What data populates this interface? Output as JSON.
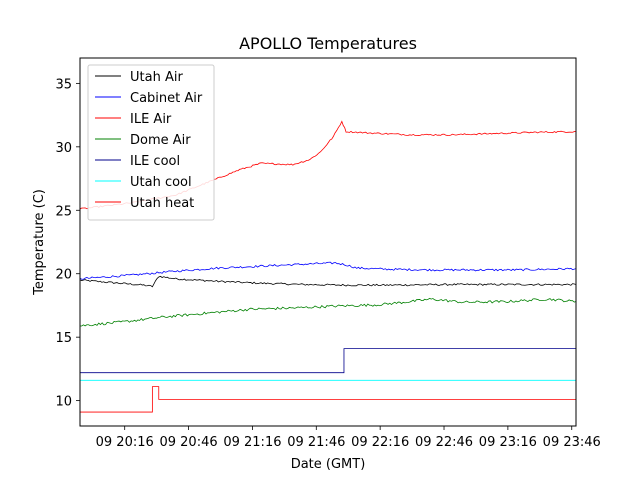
{
  "chart_data": {
    "type": "line",
    "title": "APOLLO Temperatures",
    "xlabel": "Date (GMT)",
    "ylabel": "Temperature (C)",
    "x_unit": "minutes after 09 20:00 GMT",
    "xlim": [
      -5,
      228
    ],
    "ylim": [
      8,
      37
    ],
    "x_ticks": [
      {
        "value": 16,
        "label": "09 20:16"
      },
      {
        "value": 46,
        "label": "09 20:46"
      },
      {
        "value": 76,
        "label": "09 21:16"
      },
      {
        "value": 106,
        "label": "09 21:46"
      },
      {
        "value": 136,
        "label": "09 22:16"
      },
      {
        "value": 166,
        "label": "09 22:46"
      },
      {
        "value": 196,
        "label": "09 23:16"
      },
      {
        "value": 226,
        "label": "09 23:46"
      }
    ],
    "y_ticks": [
      10,
      15,
      20,
      25,
      30,
      35
    ],
    "grid": false,
    "legend_position": "top-left",
    "series": [
      {
        "name": "Utah Air",
        "color": "#000000",
        "noise": 0.07,
        "points": [
          [
            -5,
            19.5
          ],
          [
            10,
            19.3
          ],
          [
            25,
            19.1
          ],
          [
            29,
            19.0
          ],
          [
            32,
            19.8
          ],
          [
            40,
            19.6
          ],
          [
            60,
            19.4
          ],
          [
            80,
            19.25
          ],
          [
            100,
            19.15
          ],
          [
            120,
            19.1
          ],
          [
            140,
            19.1
          ],
          [
            170,
            19.15
          ],
          [
            200,
            19.15
          ],
          [
            228,
            19.15
          ]
        ]
      },
      {
        "name": "Cabinet Air",
        "color": "#0000ff",
        "noise": 0.08,
        "points": [
          [
            -5,
            19.6
          ],
          [
            20,
            19.9
          ],
          [
            40,
            20.2
          ],
          [
            60,
            20.45
          ],
          [
            80,
            20.6
          ],
          [
            100,
            20.75
          ],
          [
            115,
            20.85
          ],
          [
            120,
            20.7
          ],
          [
            125,
            20.45
          ],
          [
            140,
            20.35
          ],
          [
            160,
            20.3
          ],
          [
            180,
            20.3
          ],
          [
            200,
            20.3
          ],
          [
            228,
            20.4
          ]
        ]
      },
      {
        "name": "ILE Air",
        "color": "#ff0000",
        "noise": 0.06,
        "points": [
          [
            -5,
            25.1
          ],
          [
            20,
            25.6
          ],
          [
            40,
            26.2
          ],
          [
            55,
            27.2
          ],
          [
            70,
            28.2
          ],
          [
            80,
            28.7
          ],
          [
            95,
            28.6
          ],
          [
            103,
            29.0
          ],
          [
            108,
            29.6
          ],
          [
            114,
            30.8
          ],
          [
            118,
            32.0
          ],
          [
            120,
            31.2
          ],
          [
            130,
            31.1
          ],
          [
            150,
            30.95
          ],
          [
            170,
            30.95
          ],
          [
            190,
            31.05
          ],
          [
            210,
            31.15
          ],
          [
            228,
            31.2
          ]
        ]
      },
      {
        "name": "Dome Air",
        "color": "#008000",
        "noise": 0.1,
        "points": [
          [
            -5,
            15.9
          ],
          [
            15,
            16.2
          ],
          [
            35,
            16.6
          ],
          [
            55,
            16.9
          ],
          [
            75,
            17.2
          ],
          [
            95,
            17.3
          ],
          [
            115,
            17.45
          ],
          [
            135,
            17.55
          ],
          [
            150,
            17.8
          ],
          [
            160,
            18.0
          ],
          [
            175,
            17.75
          ],
          [
            195,
            17.8
          ],
          [
            215,
            18.0
          ],
          [
            228,
            17.8
          ]
        ]
      },
      {
        "name": "ILE cool",
        "color": "#00008b",
        "noise": 0,
        "points": [
          [
            -5,
            12.2
          ],
          [
            119,
            12.2
          ],
          [
            119,
            14.1
          ],
          [
            228,
            14.1
          ]
        ]
      },
      {
        "name": "Utah cool",
        "color": "#00ffff",
        "noise": 0,
        "points": [
          [
            -5,
            11.6
          ],
          [
            228,
            11.6
          ]
        ]
      },
      {
        "name": "Utah heat",
        "color": "#ff0000",
        "noise": 0,
        "points": [
          [
            -5,
            9.1
          ],
          [
            29,
            9.1
          ],
          [
            29,
            11.1
          ],
          [
            32,
            11.1
          ],
          [
            32,
            10.1
          ],
          [
            228,
            10.1
          ]
        ]
      }
    ]
  }
}
